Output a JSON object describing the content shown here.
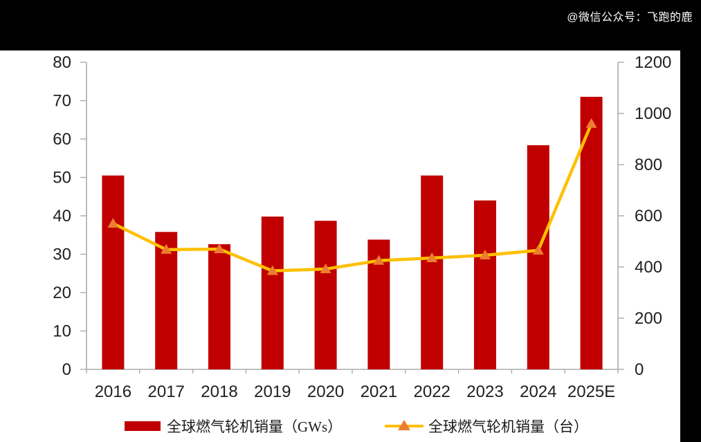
{
  "watermark": "@微信公众号：飞跑的鹿",
  "colors": {
    "bar": "#C00000",
    "line": "#FFC000",
    "marker": "#ED7D31",
    "axis": "#ABABAB",
    "axis_text": "#1f1f1f",
    "panel_bg": "#FFFFFF",
    "frame_bg": "#000000"
  },
  "chart_data": {
    "type": "bar",
    "subtype": "combo-bar-line-dual-axis",
    "categories": [
      "2016",
      "2017",
      "2018",
      "2019",
      "2020",
      "2021",
      "2022",
      "2023",
      "2024",
      "2025E"
    ],
    "series": [
      {
        "name": "全球燃气轮机销量（GWs）",
        "type": "bar",
        "axis": "left",
        "color": "#C00000",
        "values": [
          50.5,
          35.8,
          32.6,
          39.8,
          38.7,
          33.8,
          50.5,
          44,
          58.4,
          71
        ]
      },
      {
        "name": "全球燃气轮机销量（台）",
        "type": "line",
        "axis": "right",
        "color": "#FFC000",
        "marker": "triangle",
        "marker_color": "#ED7D31",
        "values": [
          570,
          468,
          470,
          385,
          392,
          425,
          435,
          446,
          465,
          960
        ]
      }
    ],
    "left_axis": {
      "min": 0,
      "max": 80,
      "step": 10
    },
    "right_axis": {
      "min": 0,
      "max": 1200,
      "step": 200
    },
    "grid": false,
    "legend_position": "bottom",
    "title": ""
  },
  "legend": {
    "items": [
      {
        "label": "全球燃气轮机销量（GWs）"
      },
      {
        "label": "全球燃气轮机销量（台）"
      }
    ]
  }
}
